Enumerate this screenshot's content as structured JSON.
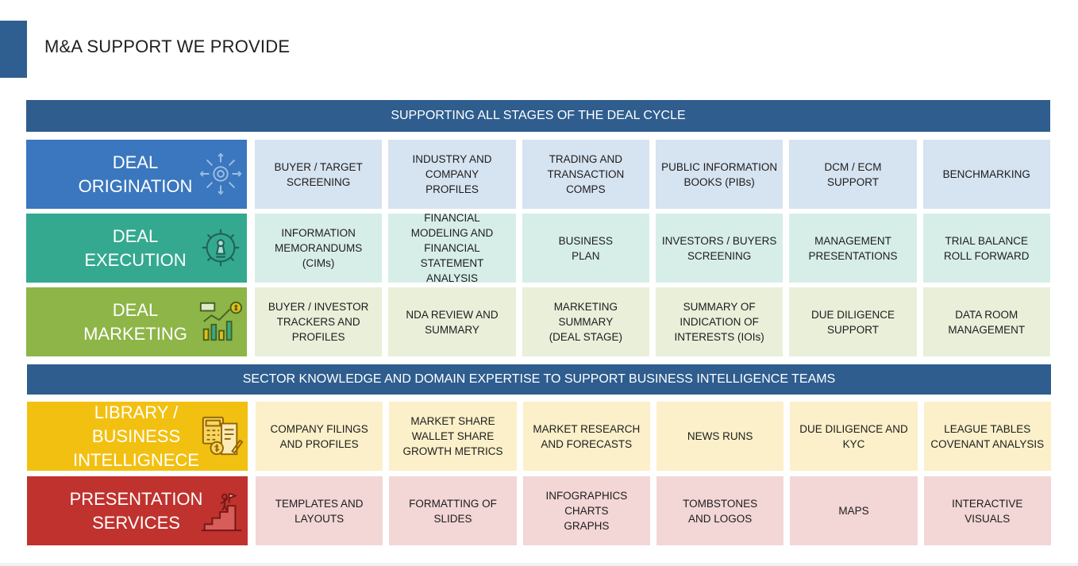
{
  "page": {
    "title": "M&A SUPPORT WE PROVIDE"
  },
  "colors": {
    "accent": "#2f5f91",
    "banner": "#2e5d8e",
    "origination": "#3a77bf",
    "origination_cell": "#d6e3f0",
    "execution": "#34a98f",
    "execution_cell": "#d7eee8",
    "marketing": "#8db547",
    "marketing_cell": "#e9efd9",
    "library": "#f2c011",
    "library_cell": "#fbf0c9",
    "presentation": "#c0322e",
    "presentation_cell": "#f3d6d6"
  },
  "banners": [
    "SUPPORTING ALL STAGES OF THE DEAL CYCLE",
    "SECTOR KNOWLEDGE AND DOMAIN EXPERTISE TO SUPPORT BUSINESS INTELLIGENCE TEAMS"
  ],
  "rows": [
    {
      "label": "DEAL\nORIGINATION",
      "icon": "network-gear-icon",
      "cells": [
        "BUYER / TARGET\nSCREENING",
        "INDUSTRY AND\nCOMPANY\nPROFILES",
        "TRADING AND\nTRANSACTION\nCOMPS",
        "PUBLIC INFORMATION\nBOOKS (PIBs)",
        "DCM / ECM\nSUPPORT",
        "BENCHMARKING"
      ]
    },
    {
      "label": "DEAL\nEXECUTION",
      "icon": "gear-chess-icon",
      "cells": [
        "INFORMATION\nMEMORANDUMS\n(CIMs)",
        "FINANCIAL\nMODELING  AND\nFINANCIAL STATEMENT\nANALYSIS",
        "BUSINESS\nPLAN",
        "INVESTORS / BUYERS\nSCREENING",
        "MANAGEMENT\nPRESENTATIONS",
        "TRIAL BALANCE\nROLL FORWARD"
      ]
    },
    {
      "label": "DEAL\nMARKETING",
      "icon": "chart-dollar-icon",
      "cells": [
        "BUYER / INVESTOR\nTRACKERS AND\nPROFILES",
        "NDA REVIEW AND\nSUMMARY",
        "MARKETING\nSUMMARY\n(DEAL STAGE)",
        "SUMMARY OF\nINDICATION OF\nINTERESTS (IOIs)",
        "DUE DILIGENCE\nSUPPORT",
        "DATA ROOM\nMANAGEMENT"
      ]
    },
    {
      "label": "LIBRARY /\nBUSINESS\nINTELLIGNECE",
      "icon": "calculator-document-icon",
      "cells": [
        "COMPANY FILINGS\nAND PROFILES",
        "MARKET SHARE\nWALLET SHARE\nGROWTH METRICS",
        "MARKET RESEARCH\nAND FORECASTS",
        "NEWS RUNS",
        "DUE DILIGENCE AND\nKYC",
        "LEAGUE TABLES\nCOVENANT ANALYSIS"
      ]
    },
    {
      "label": "PRESENTATION\nSERVICES",
      "icon": "person-stairs-flag-icon",
      "cells": [
        "TEMPLATES AND\nLAYOUTS",
        "FORMATTING OF\nSLIDES",
        "INFOGRAPHICS\nCHARTS\nGRAPHS",
        "TOMBSTONES\nAND LOGOS",
        "MAPS",
        "INTERACTIVE\nVISUALS"
      ]
    }
  ]
}
